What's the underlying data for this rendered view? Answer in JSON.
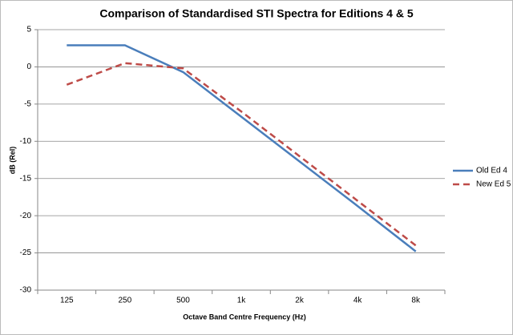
{
  "chart_data": {
    "type": "line",
    "title": "Comparison of Standardised  STI Spectra for  Editions 4 & 5",
    "x_label": "Octave Band Centre Frequency (Hz)",
    "y_label": "dB (Rel)",
    "categories": [
      "125",
      "250",
      "500",
      "1k",
      "2k",
      "4k",
      "8k"
    ],
    "series": [
      {
        "name": "Old Ed 4",
        "color": "#4a7ebb",
        "dashed": false,
        "values": [
          2.9,
          2.9,
          -0.7,
          -6.7,
          -12.7,
          -18.7,
          -24.8
        ]
      },
      {
        "name": "New Ed 5",
        "color": "#be4b48",
        "dashed": true,
        "values": [
          -2.4,
          0.5,
          -0.2,
          -6.0,
          -12.0,
          -18.0,
          -24.0
        ]
      }
    ],
    "ylim": [
      -30,
      5
    ],
    "yticks": [
      -30,
      -25,
      -20,
      -15,
      -10,
      -5,
      0,
      5
    ],
    "grid": true,
    "legend": "right"
  }
}
